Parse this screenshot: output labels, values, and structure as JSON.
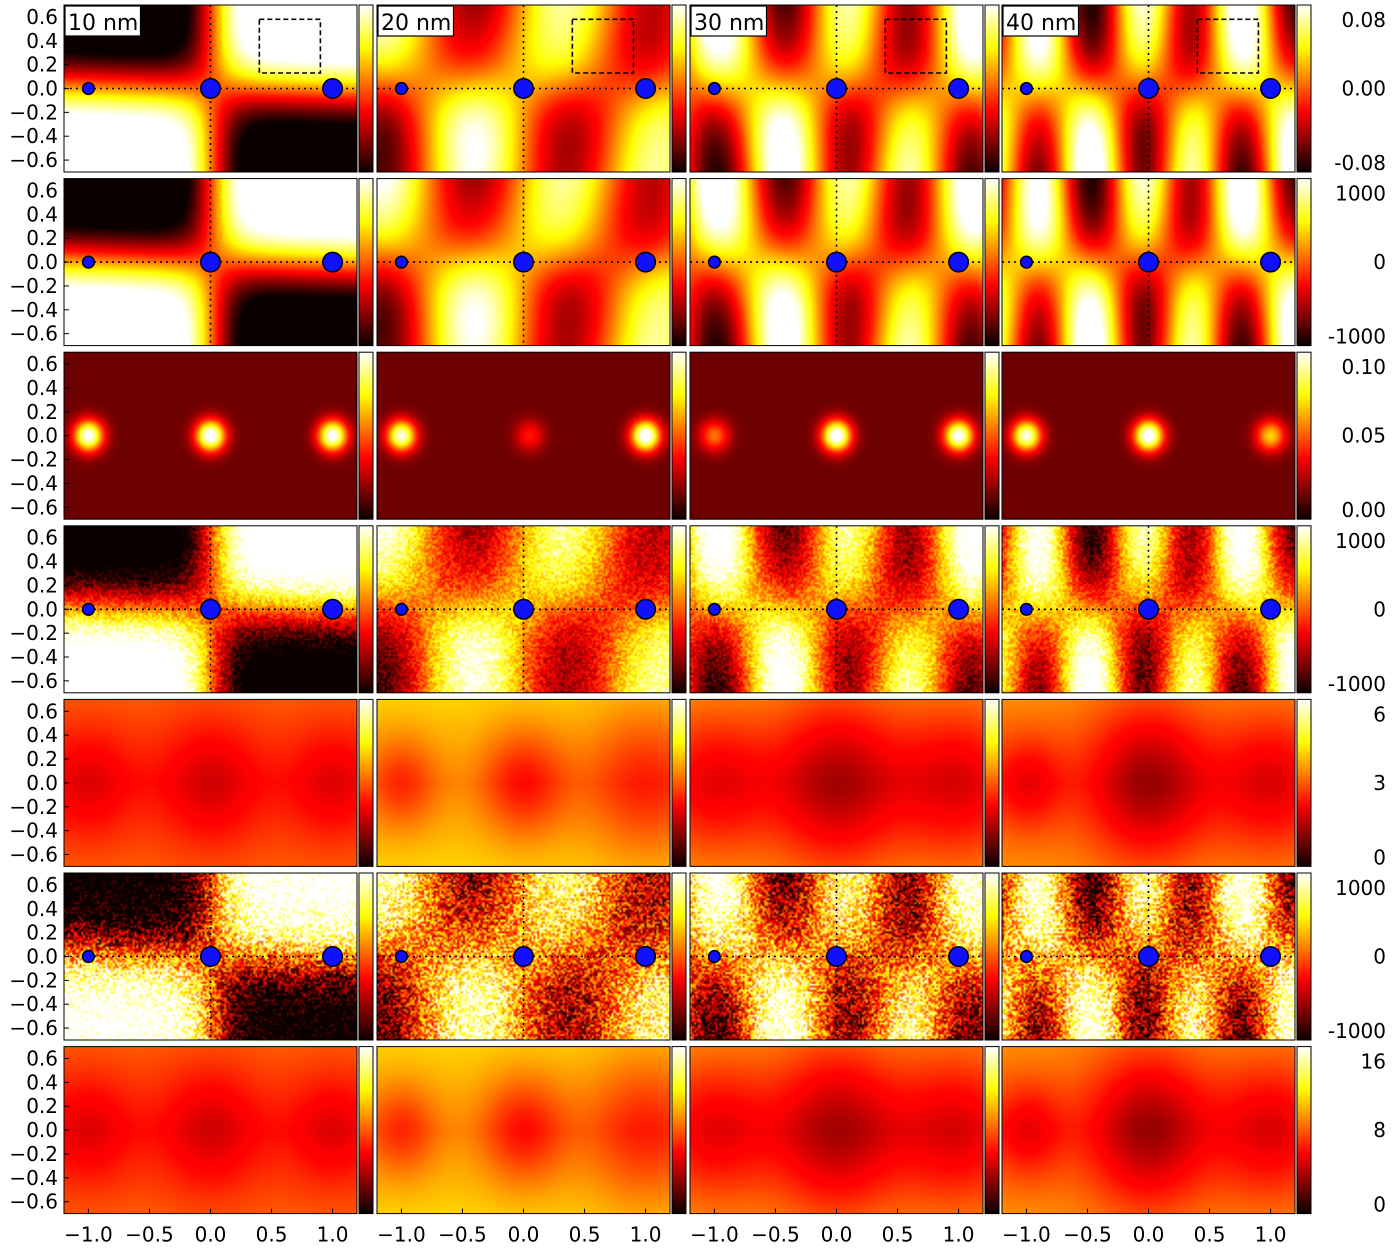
{
  "chart_data": {
    "type": "heatmap",
    "layout": {
      "rows": 7,
      "columns": 4
    },
    "colormap": "hot",
    "column_labels": [
      "10 nm",
      "20 nm",
      "30 nm",
      "40 nm"
    ],
    "xlim": [
      -1.2,
      1.2
    ],
    "ylim": [
      -0.7,
      0.7
    ],
    "x_ticks": [
      "−1.0",
      "−0.5",
      "0.0",
      "0.5",
      "1.0"
    ],
    "x_tick_values": [
      -1.0,
      -0.5,
      0.0,
      0.5,
      1.0
    ],
    "y_ticks": [
      "0.6",
      "0.4",
      "0.2",
      "0.0",
      "−0.2",
      "−0.4",
      "−0.6"
    ],
    "y_tick_values": [
      0.6,
      0.4,
      0.2,
      0.0,
      -0.2,
      -0.4,
      -0.6
    ],
    "roi_box": {
      "x": [
        0.4,
        0.9
      ],
      "y": [
        0.13,
        0.58
      ],
      "row": 1
    },
    "markers": {
      "x": [
        -1.0,
        0.0,
        1.0
      ],
      "y": 0.0,
      "relative_size": [
        0.45,
        0.75,
        0.75
      ],
      "color": "#1010ff"
    },
    "rows": [
      {
        "row": 1,
        "colorbar_ticks": [
          "0.08",
          "0.00",
          "-0.08"
        ],
        "colorbar_values": [
          0.08,
          0.0,
          -0.08
        ],
        "vmin": -0.08,
        "vmax": 0.08,
        "kind": "signed",
        "markers": true,
        "noise": 0
      },
      {
        "row": 2,
        "colorbar_ticks": [
          "1000",
          "0",
          "-1000"
        ],
        "colorbar_values": [
          1000,
          0,
          -1000
        ],
        "vmin": -1000,
        "vmax": 1000,
        "kind": "signed",
        "markers": true,
        "noise": 0
      },
      {
        "row": 3,
        "colorbar_ticks": [
          "0.10",
          "0.05",
          "0.00"
        ],
        "colorbar_values": [
          0.1,
          0.05,
          0.0
        ],
        "vmin": 0.0,
        "vmax": 0.1,
        "kind": "spots",
        "markers": false,
        "noise": 0
      },
      {
        "row": 4,
        "colorbar_ticks": [
          "1000",
          "0",
          "-1000"
        ],
        "colorbar_values": [
          1000,
          0,
          -1000
        ],
        "vmin": -1000,
        "vmax": 1000,
        "kind": "signed",
        "markers": true,
        "noise": 0.12
      },
      {
        "row": 5,
        "colorbar_ticks": [
          "6",
          "3",
          "0"
        ],
        "colorbar_values": [
          6,
          3,
          0
        ],
        "vmin": 0,
        "vmax": 6,
        "kind": "dips",
        "markers": false,
        "noise": 0
      },
      {
        "row": 6,
        "colorbar_ticks": [
          "1000",
          "0",
          "-1000"
        ],
        "colorbar_values": [
          1000,
          0,
          -1000
        ],
        "vmin": -1000,
        "vmax": 1000,
        "kind": "signed",
        "markers": true,
        "noise": 0.3
      },
      {
        "row": 7,
        "colorbar_ticks": [
          "16",
          "8",
          "0"
        ],
        "colorbar_values": [
          16,
          8,
          0
        ],
        "vmin": 0,
        "vmax": 16,
        "kind": "dips",
        "markers": false,
        "noise": 0
      }
    ]
  }
}
